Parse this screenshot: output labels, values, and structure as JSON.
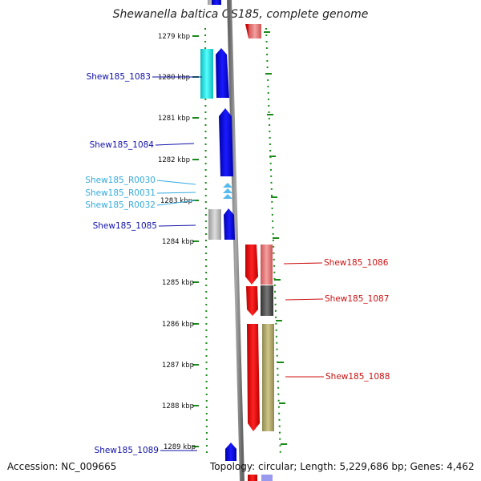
{
  "title": "Shewanella baltica OS185, complete genome",
  "footer": {
    "accession": "Accession: NC_009665",
    "summary": "Topology: circular; Length: 5,229,686 bp; Genes: 4,462"
  },
  "kbp_ticks": [
    "1279 kbp",
    "1280 kbp",
    "1281 kbp",
    "1282 kbp",
    "1283 kbp",
    "1284 kbp",
    "1285 kbp",
    "1286 kbp",
    "1287 kbp",
    "1288 kbp",
    "1289 kbp"
  ],
  "gene_labels": {
    "g1083": "Shew185_1083",
    "g1084": "Shew185_1084",
    "r0030": "Shew185_R0030",
    "r0031": "Shew185_R0031",
    "r0032": "Shew185_R0032",
    "g1085": "Shew185_1085",
    "g1086": "Shew185_1086",
    "g1087": "Shew185_1087",
    "g1088": "Shew185_1088",
    "g1089": "Shew185_1089"
  },
  "colors": {
    "blue_strand": "#0000ee",
    "cyan_gene": "#22dddd",
    "trna": "#55bbee",
    "red_strand": "#ee1111",
    "pink_gene": "#ee7777",
    "dark_gene": "#555555",
    "khaki_gene": "#b0a86a",
    "grey_gene": "#bbbbbb",
    "tick_green": "#1a8a1a"
  }
}
